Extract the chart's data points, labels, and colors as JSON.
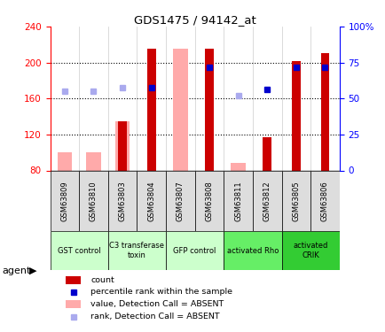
{
  "title": "GDS1475 / 94142_at",
  "samples": [
    "GSM63809",
    "GSM63810",
    "GSM63803",
    "GSM63804",
    "GSM63807",
    "GSM63808",
    "GSM63811",
    "GSM63812",
    "GSM63805",
    "GSM63806"
  ],
  "count_values": [
    null,
    null,
    135,
    215,
    null,
    215,
    null,
    117,
    202,
    210
  ],
  "pink_bar_values": [
    100,
    100,
    135,
    null,
    215,
    null,
    88,
    null,
    null,
    null
  ],
  "rank_values": [
    null,
    null,
    null,
    172,
    null,
    195,
    null,
    170,
    195,
    195
  ],
  "rank_absent": [
    168,
    168,
    172,
    null,
    null,
    null,
    163,
    null,
    null,
    null
  ],
  "ylim": [
    80,
    240
  ],
  "y2lim": [
    0,
    100
  ],
  "yticks": [
    80,
    120,
    160,
    200,
    240
  ],
  "y2ticks": [
    0,
    25,
    50,
    75,
    100
  ],
  "agent_groups": [
    {
      "label": "GST control",
      "span": [
        0,
        2
      ],
      "color": "#ccffcc"
    },
    {
      "label": "C3 transferase\ntoxin",
      "span": [
        2,
        4
      ],
      "color": "#ccffcc"
    },
    {
      "label": "GFP control",
      "span": [
        4,
        6
      ],
      "color": "#ccffcc"
    },
    {
      "label": "activated Rho",
      "span": [
        6,
        8
      ],
      "color": "#66ee66"
    },
    {
      "label": "activated\nCRIK",
      "span": [
        8,
        10
      ],
      "color": "#33cc33"
    }
  ],
  "bar_color_dark_red": "#cc0000",
  "bar_color_pink": "#ffaaaa",
  "dot_color_dark_blue": "#0000cc",
  "dot_color_light_blue": "#aaaaee",
  "sample_box_color": "#dddddd",
  "background_color": "#ffffff"
}
